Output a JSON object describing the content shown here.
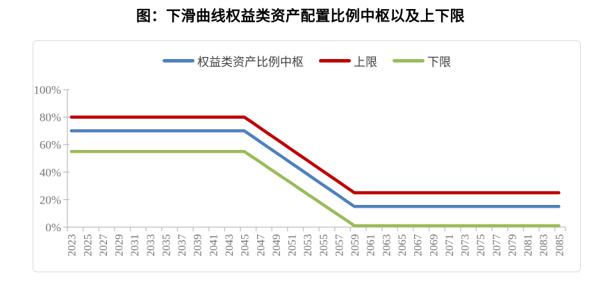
{
  "title": "图：下滑曲线权益类资产配置比例中枢以及上下限",
  "colors": {
    "center_line": "#4F81BD",
    "upper_line": "#C00000",
    "lower_line": "#9BBB59",
    "axis": "#BFBFBF",
    "axis_label": "#767676",
    "legend_text": "#3F3F3F",
    "card_border": "#D9D9D9",
    "title_text": "#000000"
  },
  "legend": {
    "items": [
      {
        "label": "权益类资产比例中枢",
        "color": "#4F81BD"
      },
      {
        "label": "上限",
        "color": "#C00000"
      },
      {
        "label": "下限",
        "color": "#9BBB59"
      }
    ]
  },
  "chart_data": {
    "type": "line",
    "title": "图：下滑曲线权益类资产配置比例中枢以及上下限",
    "xlabel": "",
    "ylabel": "",
    "ylim": [
      0,
      100
    ],
    "grid": false,
    "legend_position": "top",
    "y_tick_labels": [
      "0%",
      "20%",
      "40%",
      "60%",
      "80%",
      "100%"
    ],
    "y_tick_values": [
      0,
      20,
      40,
      60,
      80,
      100
    ],
    "x": [
      2023,
      2024,
      2025,
      2026,
      2027,
      2028,
      2029,
      2030,
      2031,
      2032,
      2033,
      2034,
      2035,
      2036,
      2037,
      2038,
      2039,
      2040,
      2041,
      2042,
      2043,
      2044,
      2045,
      2046,
      2047,
      2048,
      2049,
      2050,
      2051,
      2052,
      2053,
      2054,
      2055,
      2056,
      2057,
      2058,
      2059,
      2060,
      2061,
      2062,
      2063,
      2064,
      2065,
      2066,
      2067,
      2068,
      2069,
      2070,
      2071,
      2072,
      2073,
      2074,
      2075,
      2076,
      2077,
      2078,
      2079,
      2080,
      2081,
      2082,
      2083,
      2084,
      2085
    ],
    "x_tick_labels": [
      "2023",
      "2025",
      "2027",
      "2029",
      "2031",
      "2033",
      "2035",
      "2037",
      "2039",
      "2041",
      "2043",
      "2045",
      "2047",
      "2049",
      "2051",
      "2053",
      "2055",
      "2057",
      "2059",
      "2061",
      "2063",
      "2065",
      "2067",
      "2069",
      "2071",
      "2073",
      "2075",
      "2077",
      "2079",
      "2081",
      "2083",
      "2085"
    ],
    "series": [
      {
        "name": "权益类资产比例中枢",
        "key": "center",
        "color": "#4F81BD",
        "values": [
          70,
          70,
          70,
          70,
          70,
          70,
          70,
          70,
          70,
          70,
          70,
          70,
          70,
          70,
          70,
          70,
          70,
          70,
          70,
          70,
          70,
          70,
          70,
          66.1,
          62.1,
          58.2,
          54.3,
          50.4,
          46.4,
          42.5,
          38.6,
          34.6,
          30.7,
          26.8,
          22.9,
          18.9,
          15,
          15,
          15,
          15,
          15,
          15,
          15,
          15,
          15,
          15,
          15,
          15,
          15,
          15,
          15,
          15,
          15,
          15,
          15,
          15,
          15,
          15,
          15,
          15,
          15,
          15,
          15
        ]
      },
      {
        "name": "上限",
        "key": "upper",
        "color": "#C00000",
        "values": [
          80,
          80,
          80,
          80,
          80,
          80,
          80,
          80,
          80,
          80,
          80,
          80,
          80,
          80,
          80,
          80,
          80,
          80,
          80,
          80,
          80,
          80,
          80,
          76.1,
          72.1,
          68.2,
          64.3,
          60.4,
          56.4,
          52.5,
          48.6,
          44.6,
          40.7,
          36.8,
          32.9,
          28.9,
          25,
          25,
          25,
          25,
          25,
          25,
          25,
          25,
          25,
          25,
          25,
          25,
          25,
          25,
          25,
          25,
          25,
          25,
          25,
          25,
          25,
          25,
          25,
          25,
          25,
          25,
          25
        ]
      },
      {
        "name": "下限",
        "key": "lower",
        "color": "#9BBB59",
        "values": [
          55,
          55,
          55,
          55,
          55,
          55,
          55,
          55,
          55,
          55,
          55,
          55,
          55,
          55,
          55,
          55,
          55,
          55,
          55,
          55,
          55,
          55,
          55,
          51.1,
          47.3,
          43.4,
          39.6,
          35.7,
          31.9,
          28,
          24.1,
          20.3,
          16.4,
          12.6,
          8.7,
          4.9,
          1,
          1,
          1,
          1,
          1,
          1,
          1,
          1,
          1,
          1,
          1,
          1,
          1,
          1,
          1,
          1,
          1,
          1,
          1,
          1,
          1,
          1,
          1,
          1,
          1,
          1,
          1
        ]
      }
    ]
  }
}
